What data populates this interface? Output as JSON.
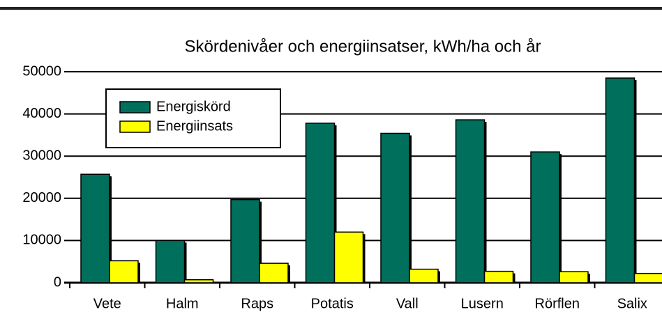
{
  "chart_data": {
    "type": "bar",
    "title": "Skördenivåer och energiinsatser, kWh/ha och år",
    "categories": [
      "Vete",
      "Halm",
      "Raps",
      "Potatis",
      "Vall",
      "Lusern",
      "Rörflen",
      "Salix"
    ],
    "series": [
      {
        "name": "Energiskörd",
        "color": "#00705c",
        "values": [
          25700,
          10000,
          19700,
          37800,
          35400,
          38600,
          31000,
          48500
        ]
      },
      {
        "name": "Energiinsats",
        "color": "#ffff00",
        "values": [
          5200,
          700,
          4600,
          12000,
          3200,
          2700,
          2600,
          2200
        ]
      }
    ],
    "ylim": [
      0,
      50000
    ],
    "yticks": [
      0,
      10000,
      20000,
      30000,
      40000,
      50000
    ],
    "grid": true,
    "legend": "upper left"
  }
}
